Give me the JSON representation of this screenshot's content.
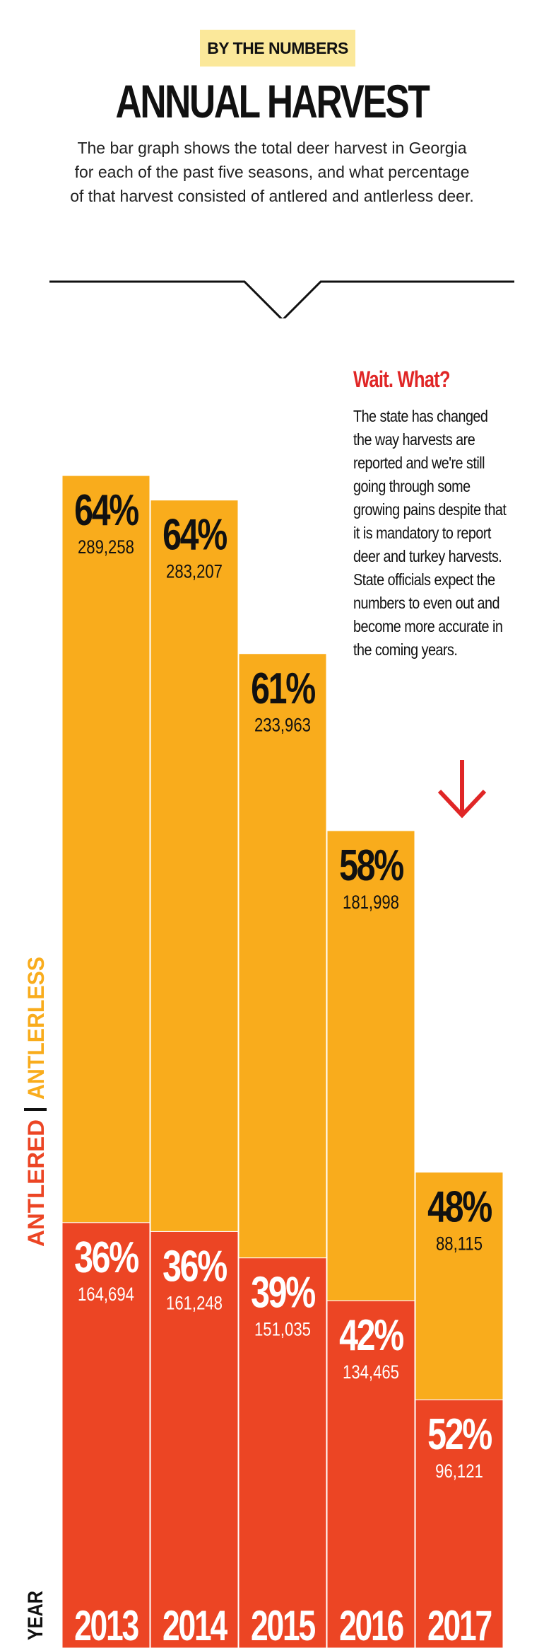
{
  "header": {
    "kicker": "BY THE NUMBERS",
    "title": "ANNUAL HARVEST",
    "intro_lines": [
      "The bar graph shows the total deer harvest in Georgia",
      "for each of the past five seasons, and what percentage",
      "of that harvest consisted of antlered and antlerless deer."
    ]
  },
  "note": {
    "title": "Wait. What?",
    "lines": [
      "The state has changed",
      "the way harvests are",
      "reported and we're still",
      "going through some",
      "growing pains despite that",
      "it is mandatory to report",
      "deer and turkey harvests.",
      "State officials expect the",
      "numbers to even out and",
      "become more accurate in",
      "the coming years."
    ],
    "arrow_icon": "down-arrow-icon"
  },
  "colors": {
    "antlerless": "#f9ac1c",
    "antlered": "#ec4524",
    "note_accent": "#e02626",
    "year_band": "#ec4524"
  },
  "chart_data": {
    "type": "bar",
    "stacked": true,
    "xlabel": "YEAR",
    "legend": [
      {
        "name": "ANTLERED",
        "color": "#ec4524"
      },
      {
        "name": "ANTLERLESS",
        "color": "#f9ac1c"
      }
    ],
    "legend_placement": "left-vertical",
    "categories": [
      "2013",
      "2014",
      "2015",
      "2016",
      "2017"
    ],
    "series": [
      {
        "name": "ANTLERED",
        "values": [
          164694,
          161248,
          151035,
          134465,
          96121
        ],
        "labels": [
          "164,694",
          "161,248",
          "151,035",
          "134,465",
          "96,121"
        ],
        "percents": [
          "36%",
          "36%",
          "39%",
          "42%",
          "52%"
        ]
      },
      {
        "name": "ANTLERLESS",
        "values": [
          289258,
          283207,
          233963,
          181998,
          88115
        ],
        "labels": [
          "289,258",
          "283,207",
          "233,963",
          "181,998",
          "88,115"
        ],
        "percents": [
          "64%",
          "64%",
          "61%",
          "58%",
          "48%"
        ]
      }
    ],
    "grid": false
  }
}
